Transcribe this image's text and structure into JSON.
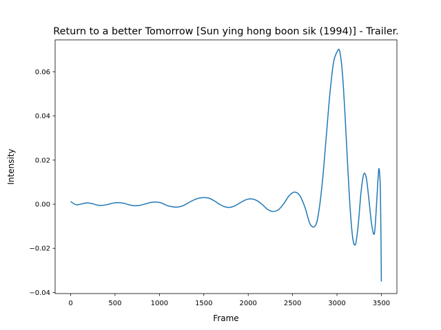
{
  "chart_data": {
    "type": "line",
    "title": "Return to a better Tomorrow [Sun ying hong boon sik (1994)] - Trailer.",
    "xlabel": "Frame",
    "ylabel": "Intensity",
    "xlim": [
      -175,
      3675
    ],
    "ylim": [
      -0.0405,
      0.0745
    ],
    "x_ticks": [
      0,
      500,
      1000,
      1500,
      2000,
      2500,
      3000,
      3500
    ],
    "y_ticks": [
      -0.04,
      -0.02,
      0.0,
      0.02,
      0.04,
      0.06
    ],
    "x_tick_labels": [
      "0",
      "500",
      "1000",
      "1500",
      "2000",
      "2500",
      "3000",
      "3500"
    ],
    "y_tick_labels": [
      "−0.04",
      "−0.02",
      "0.00",
      "0.02",
      "0.04",
      "0.06"
    ],
    "grid": false,
    "line_color": "#1f77b4",
    "series": [
      {
        "x": [
          0,
          60,
          120,
          180,
          240,
          300,
          360,
          420,
          480,
          540,
          600,
          660,
          720,
          780,
          840,
          900,
          960,
          1020,
          1080,
          1140,
          1200,
          1260,
          1320,
          1380,
          1440,
          1500,
          1560,
          1620,
          1680,
          1740,
          1800,
          1860,
          1920,
          1980,
          2040,
          2100,
          2160,
          2220,
          2280,
          2340,
          2400,
          2460,
          2520,
          2580,
          2640,
          2700,
          2760,
          2800,
          2840,
          2880,
          2920,
          2960,
          3000,
          3030,
          3060,
          3090,
          3120,
          3150,
          3180,
          3210,
          3240,
          3270,
          3300,
          3330,
          3360,
          3390,
          3420,
          3440,
          3460,
          3475,
          3490,
          3500
        ],
        "y": [
          0.0012,
          -0.0002,
          0.0001,
          0.0006,
          0.0003,
          -0.0004,
          -0.0005,
          -0.0001,
          0.0005,
          0.0007,
          0.0004,
          -0.0003,
          -0.0007,
          -0.0005,
          0.0001,
          0.0008,
          0.001,
          0.0006,
          -0.0005,
          -0.0011,
          -0.0013,
          -0.0008,
          0.0005,
          0.0018,
          0.0027,
          0.003,
          0.0027,
          0.0015,
          -0.0001,
          -0.0012,
          -0.0014,
          -0.0005,
          0.0009,
          0.0021,
          0.0024,
          0.0016,
          -0.0002,
          -0.0024,
          -0.0033,
          -0.0025,
          0.0002,
          0.0038,
          0.0055,
          0.004,
          -0.0015,
          -0.0092,
          -0.0095,
          -0.002,
          0.012,
          0.031,
          0.05,
          0.064,
          0.069,
          0.0695,
          0.06,
          0.041,
          0.018,
          -0.003,
          -0.016,
          -0.018,
          -0.009,
          0.005,
          0.0135,
          0.012,
          0.002,
          -0.009,
          -0.0135,
          -0.004,
          0.01,
          0.016,
          0.004,
          -0.035
        ]
      }
    ]
  }
}
